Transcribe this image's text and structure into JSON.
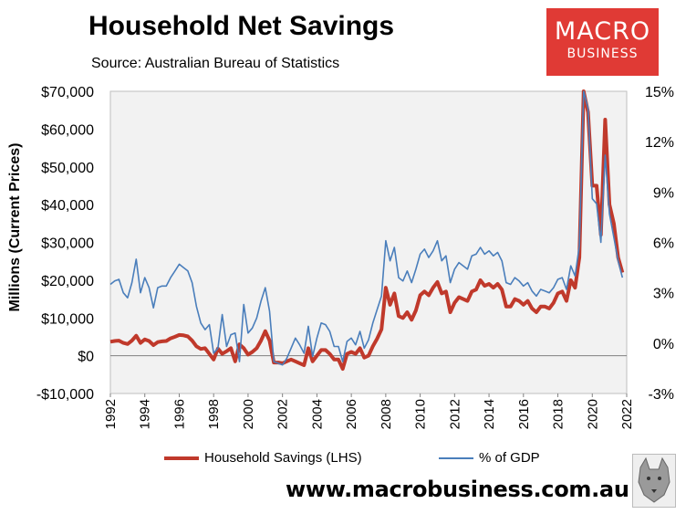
{
  "header": {
    "title": "Household Net Savings",
    "subtitle": "Source: Australian Bureau of Statistics"
  },
  "logo": {
    "line1": "MACRO",
    "line2": "BUSINESS"
  },
  "footer": {
    "url": "www.macrobusiness.com.au"
  },
  "colors": {
    "savings": "#c0392b",
    "gdp": "#4a7ebb",
    "logo_bg": "#e03a35",
    "plot_bg": "#f2f2f2"
  },
  "chart_data": {
    "type": "line",
    "title": "Household Net Savings",
    "subtitle": "Source: Australian Bureau of Statistics",
    "ylabel": "Millions (Current Prices)",
    "y2label": "",
    "xlabel": "",
    "x_ticks": [
      "1992",
      "1994",
      "1996",
      "1998",
      "2000",
      "2002",
      "2004",
      "2006",
      "2008",
      "2010",
      "2012",
      "2014",
      "2016",
      "2018",
      "2020",
      "2022"
    ],
    "xlim": [
      1992,
      2022
    ],
    "ylim": [
      -10000,
      70000
    ],
    "y_ticks": [
      -10000,
      0,
      10000,
      20000,
      30000,
      40000,
      50000,
      60000,
      70000
    ],
    "y_tick_labels": [
      "-$10,000",
      "$0",
      "$10,000",
      "$20,000",
      "$30,000",
      "$40,000",
      "$50,000",
      "$60,000",
      "$70,000"
    ],
    "y2lim": [
      -3,
      15
    ],
    "y2_ticks": [
      -3,
      0,
      3,
      6,
      9,
      12,
      15
    ],
    "y2_tick_labels": [
      "-3%",
      "0%",
      "3%",
      "6%",
      "9%",
      "12%",
      "15%"
    ],
    "legend_position": "bottom",
    "series": [
      {
        "name": "Household Savings (LHS)",
        "axis": "left",
        "color": "#c0392b",
        "x": [
          1992.0,
          1992.25,
          1992.5,
          1992.75,
          1993.0,
          1993.25,
          1993.5,
          1993.75,
          1994.0,
          1994.25,
          1994.5,
          1994.75,
          1995.0,
          1995.25,
          1995.5,
          1995.75,
          1996.0,
          1996.25,
          1996.5,
          1996.75,
          1997.0,
          1997.25,
          1997.5,
          1997.75,
          1998.0,
          1998.25,
          1998.5,
          1998.75,
          1999.0,
          1999.25,
          1999.5,
          1999.75,
          2000.0,
          2000.25,
          2000.5,
          2000.75,
          2001.0,
          2001.25,
          2001.5,
          2001.75,
          2002.0,
          2002.25,
          2002.5,
          2002.75,
          2003.0,
          2003.25,
          2003.5,
          2003.75,
          2004.0,
          2004.25,
          2004.5,
          2004.75,
          2005.0,
          2005.25,
          2005.5,
          2005.75,
          2006.0,
          2006.25,
          2006.5,
          2006.75,
          2007.0,
          2007.25,
          2007.5,
          2007.75,
          2008.0,
          2008.25,
          2008.5,
          2008.75,
          2009.0,
          2009.25,
          2009.5,
          2009.75,
          2010.0,
          2010.25,
          2010.5,
          2010.75,
          2011.0,
          2011.25,
          2011.5,
          2011.75,
          2012.0,
          2012.25,
          2012.5,
          2012.75,
          2013.0,
          2013.25,
          2013.5,
          2013.75,
          2014.0,
          2014.25,
          2014.5,
          2014.75,
          2015.0,
          2015.25,
          2015.5,
          2015.75,
          2016.0,
          2016.25,
          2016.5,
          2016.75,
          2017.0,
          2017.25,
          2017.5,
          2017.75,
          2018.0,
          2018.25,
          2018.5,
          2018.75,
          2019.0,
          2019.25,
          2019.5,
          2019.75,
          2020.0,
          2020.25,
          2020.5,
          2020.75,
          2021.0,
          2021.25,
          2021.5,
          2021.75
        ],
        "values": [
          3700,
          3900,
          4000,
          3400,
          3100,
          4000,
          5300,
          3400,
          4300,
          3900,
          2800,
          3600,
          3800,
          3900,
          4600,
          5000,
          5500,
          5400,
          5100,
          4000,
          2500,
          1800,
          2000,
          500,
          -1000,
          1900,
          500,
          1200,
          2000,
          -1500,
          3000,
          2000,
          300,
          1000,
          2000,
          4000,
          6500,
          4000,
          -1800,
          -1800,
          -2000,
          -1500,
          -1000,
          -1500,
          -2000,
          -2500,
          2000,
          -1500,
          0,
          1500,
          1500,
          500,
          -1000,
          -1000,
          -3500,
          500,
          1000,
          500,
          2000,
          -500,
          0,
          2500,
          4500,
          7000,
          18000,
          13500,
          16500,
          10500,
          10000,
          11500,
          9500,
          12000,
          16000,
          17000,
          16000,
          18000,
          19500,
          16500,
          17000,
          11500,
          14000,
          15500,
          15000,
          14500,
          17000,
          17500,
          20000,
          18500,
          19000,
          18000,
          19000,
          17500,
          13000,
          13000,
          15000,
          14500,
          13500,
          14500,
          12500,
          11500,
          13000,
          13000,
          12500,
          14000,
          16500,
          17000,
          14500,
          20000,
          18000,
          26000,
          70000,
          64500,
          45000,
          45000,
          32000,
          62500,
          40000,
          35000,
          26000,
          22000
        ]
      },
      {
        "name": "% of GDP",
        "axis": "right",
        "color": "#4a7ebb",
        "x": [
          1992.0,
          1992.25,
          1992.5,
          1992.75,
          1993.0,
          1993.25,
          1993.5,
          1993.75,
          1994.0,
          1994.25,
          1994.5,
          1994.75,
          1995.0,
          1995.25,
          1995.5,
          1995.75,
          1996.0,
          1996.25,
          1996.5,
          1996.75,
          1997.0,
          1997.25,
          1997.5,
          1997.75,
          1998.0,
          1998.25,
          1998.5,
          1998.75,
          1999.0,
          1999.25,
          1999.5,
          1999.75,
          2000.0,
          2000.25,
          2000.5,
          2000.75,
          2001.0,
          2001.25,
          2001.5,
          2001.75,
          2002.0,
          2002.25,
          2002.5,
          2002.75,
          2003.0,
          2003.25,
          2003.5,
          2003.75,
          2004.0,
          2004.25,
          2004.5,
          2004.75,
          2005.0,
          2005.25,
          2005.5,
          2005.75,
          2006.0,
          2006.25,
          2006.5,
          2006.75,
          2007.0,
          2007.25,
          2007.5,
          2007.75,
          2008.0,
          2008.25,
          2008.5,
          2008.75,
          2009.0,
          2009.25,
          2009.5,
          2009.75,
          2010.0,
          2010.25,
          2010.5,
          2010.75,
          2011.0,
          2011.25,
          2011.5,
          2011.75,
          2012.0,
          2012.25,
          2012.5,
          2012.75,
          2013.0,
          2013.25,
          2013.5,
          2013.75,
          2014.0,
          2014.25,
          2014.5,
          2014.75,
          2015.0,
          2015.25,
          2015.5,
          2015.75,
          2016.0,
          2016.25,
          2016.5,
          2016.75,
          2017.0,
          2017.25,
          2017.5,
          2017.75,
          2018.0,
          2018.25,
          2018.5,
          2018.75,
          2019.0,
          2019.25,
          2019.5,
          2019.75,
          2020.0,
          2020.25,
          2020.5,
          2020.75,
          2021.0,
          2021.25,
          2021.5,
          2021.75
        ],
        "values": [
          3.5,
          3.7,
          3.8,
          3.0,
          2.7,
          3.6,
          5.0,
          3.0,
          3.9,
          3.3,
          2.1,
          3.3,
          3.4,
          3.4,
          3.9,
          4.3,
          4.7,
          4.5,
          4.3,
          3.6,
          2.2,
          1.2,
          0.8,
          1.1,
          -0.6,
          -0.3,
          1.7,
          -0.2,
          0.5,
          0.6,
          -1.1,
          2.3,
          0.6,
          0.9,
          1.5,
          2.5,
          3.3,
          1.9,
          -1.1,
          -1.2,
          -1.3,
          -0.9,
          -0.3,
          0.3,
          -0.1,
          -0.6,
          1.0,
          -0.8,
          0.3,
          1.2,
          1.1,
          0.7,
          -0.2,
          -0.2,
          -1.1,
          0.1,
          0.3,
          -0.1,
          0.7,
          -0.3,
          0.2,
          1.2,
          2.0,
          2.8,
          6.1,
          4.9,
          5.7,
          3.9,
          3.7,
          4.3,
          3.6,
          4.4,
          5.3,
          5.6,
          5.1,
          5.5,
          6.1,
          4.9,
          5.2,
          3.6,
          4.4,
          4.8,
          4.6,
          4.4,
          5.2,
          5.3,
          5.7,
          5.3,
          5.5,
          5.2,
          5.4,
          4.9,
          3.6,
          3.5,
          3.9,
          3.7,
          3.4,
          3.6,
          3.1,
          2.8,
          3.2,
          3.1,
          3.0,
          3.3,
          3.8,
          3.9,
          3.2,
          4.6,
          4.0,
          5.8,
          15.4,
          14.0,
          8.6,
          8.3,
          6.0,
          11.2,
          7.7,
          6.3,
          4.9,
          3.9
        ]
      }
    ]
  }
}
